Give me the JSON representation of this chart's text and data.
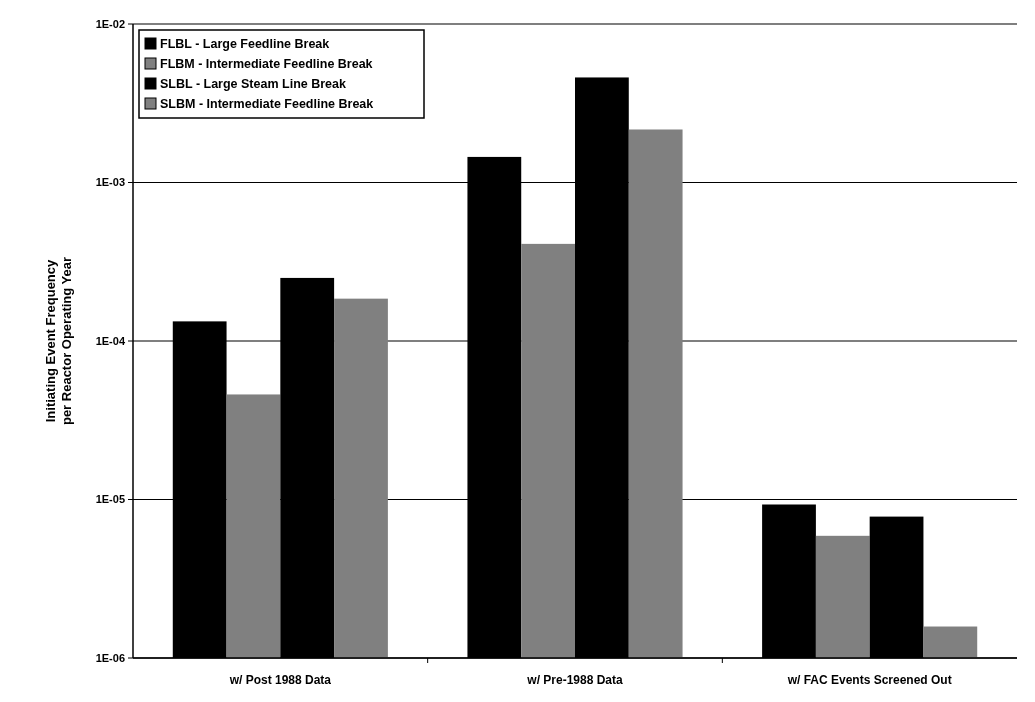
{
  "chart_data": {
    "type": "bar",
    "ylabel": "Initiating Event Frequency\nper Reactor Operating Year",
    "categories": [
      "w/ Post 1988 Data",
      "w/ Pre-1988 Data",
      "w/ FAC Events Screened Out"
    ],
    "series": [
      {
        "name": "FLBL - Large Feedline Break",
        "color": "#000000",
        "values": [
          0.000133,
          0.00145,
          9.3e-06
        ]
      },
      {
        "name": "FLBM - Intermediate Feedline Break",
        "color": "#808080",
        "values": [
          4.6e-05,
          0.00041,
          5.9e-06
        ]
      },
      {
        "name": "SLBL - Large Steam Line Break",
        "color": "#000000",
        "values": [
          0.00025,
          0.0046,
          7.8e-06
        ]
      },
      {
        "name": "SLBM - Intermediate Feedline Break",
        "color": "#808080",
        "values": [
          0.000185,
          0.00216,
          1.58e-06
        ]
      }
    ],
    "log": true,
    "ylim": [
      1e-06,
      0.01
    ],
    "yticks": [
      {
        "value": 1e-06,
        "label": "1E-06"
      },
      {
        "value": 1e-05,
        "label": "1E-05"
      },
      {
        "value": 0.0001,
        "label": "1E-04"
      },
      {
        "value": 0.001,
        "label": "1E-03"
      },
      {
        "value": 0.01,
        "label": "1E-02"
      }
    ],
    "grid": "y",
    "legend": "top left"
  }
}
